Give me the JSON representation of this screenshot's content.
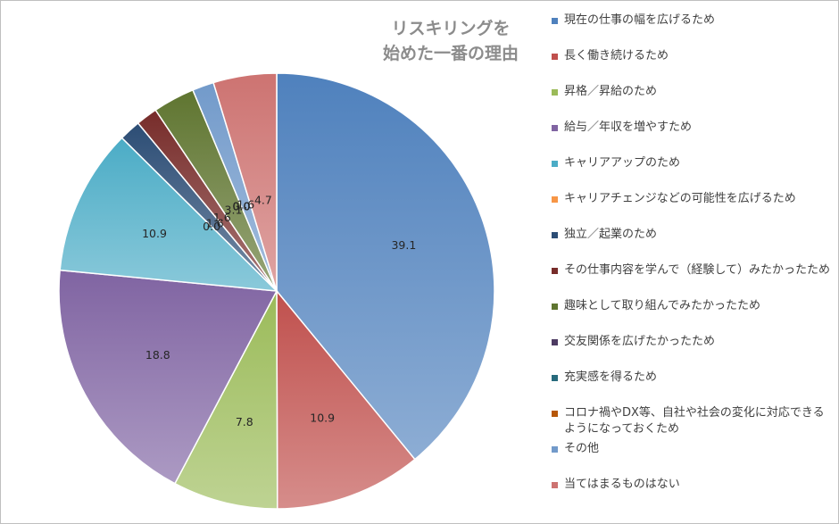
{
  "title_lines": [
    "リスキリングを",
    "始めた一番の理由"
  ],
  "chart_data": {
    "type": "pie",
    "title": "リスキリングを始めた一番の理由",
    "legend_position": "right",
    "slices": [
      {
        "label": "現在の仕事の幅を広げるため",
        "value": 39.1,
        "value_label": "39.1",
        "color": "#4f81bd"
      },
      {
        "label": "長く働き続けるため",
        "value": 10.9,
        "value_label": "10.9",
        "color": "#c0504d"
      },
      {
        "label": "昇格／昇給のため",
        "value": 7.8,
        "value_label": "7.8",
        "color": "#9bbb59"
      },
      {
        "label": "給与／年収を増やすため",
        "value": 18.8,
        "value_label": "18.8",
        "color": "#8064a2"
      },
      {
        "label": "キャリアアップのため",
        "value": 10.9,
        "value_label": "10.9",
        "color": "#4bacc6"
      },
      {
        "label": "キャリアチェンジなどの可能性を広げるため",
        "value": 0.0,
        "value_label": "0.0",
        "color": "#f79646"
      },
      {
        "label": "独立／起業のため",
        "value": 1.6,
        "value_label": "1.6",
        "color": "#2c4d75"
      },
      {
        "label": "その仕事内容を学んで（経験して）みたかったため",
        "value": 1.6,
        "value_label": "1.6",
        "color": "#772c2a"
      },
      {
        "label": "趣味として取り組んでみたかったため",
        "value": 3.1,
        "value_label": "3.1",
        "color": "#5f7530"
      },
      {
        "label": "交友関係を広げたかったため",
        "value": 0.0,
        "value_label": "0.0",
        "color": "#4d3b62"
      },
      {
        "label": "充実感を得るため",
        "value": 0.0,
        "value_label": "0.0",
        "color": "#276a7c"
      },
      {
        "label": "コロナ禍やDX等、自社や社会の変化に対応できるようになっておくため",
        "value": 0.0,
        "value_label": "0.0",
        "color": "#b65708"
      },
      {
        "label": "その他",
        "value": 1.6,
        "value_label": "1.6",
        "color": "#729aca"
      },
      {
        "label": "当てはまるものはない",
        "value": 4.7,
        "value_label": "4.7",
        "color": "#cd7371"
      }
    ]
  }
}
